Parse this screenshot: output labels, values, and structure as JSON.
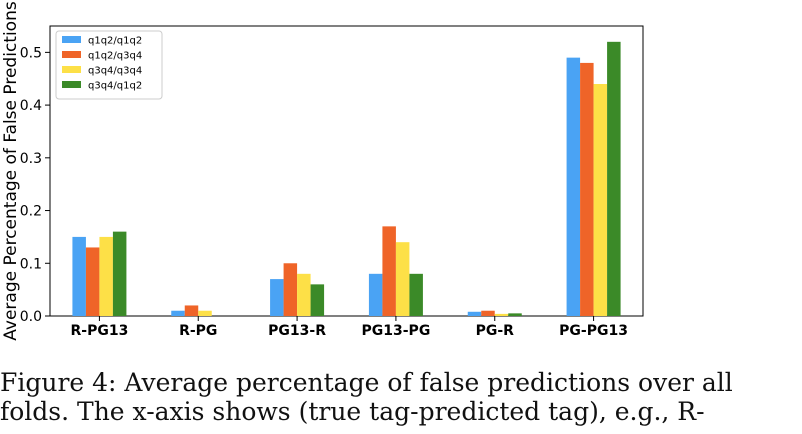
{
  "chart_data": {
    "type": "bar",
    "ylabel": "Average Percentage of False Predictions",
    "categories": [
      "R-PG13",
      "R-PG",
      "PG13-R",
      "PG13-PG",
      "PG-R",
      "PG-PG13"
    ],
    "series": [
      {
        "name": "q1q2/q1q2",
        "color": "#4aa3f4",
        "values": [
          0.15,
          0.01,
          0.07,
          0.08,
          0.008,
          0.49
        ]
      },
      {
        "name": "q1q2/q3q4",
        "color": "#ef6428",
        "values": [
          0.13,
          0.02,
          0.1,
          0.17,
          0.01,
          0.48
        ]
      },
      {
        "name": "q3q4/q3q4",
        "color": "#fde047",
        "values": [
          0.15,
          0.01,
          0.08,
          0.14,
          0.004,
          0.44
        ]
      },
      {
        "name": "q3q4/q1q2",
        "color": "#3b8a28",
        "values": [
          0.16,
          0.0,
          0.06,
          0.08,
          0.005,
          0.52
        ]
      }
    ],
    "ylim": [
      0,
      0.55
    ],
    "yticks": [
      "0.0",
      "0.1",
      "0.2",
      "0.3",
      "0.4",
      "0.5"
    ],
    "legend_position": "top-left",
    "grid": false
  },
  "caption": {
    "line1": "Figure 4:  Average percentage of false predictions over all",
    "line2": "folds.  The x-axis shows (true tag-predicted tag), e.g., R-"
  }
}
